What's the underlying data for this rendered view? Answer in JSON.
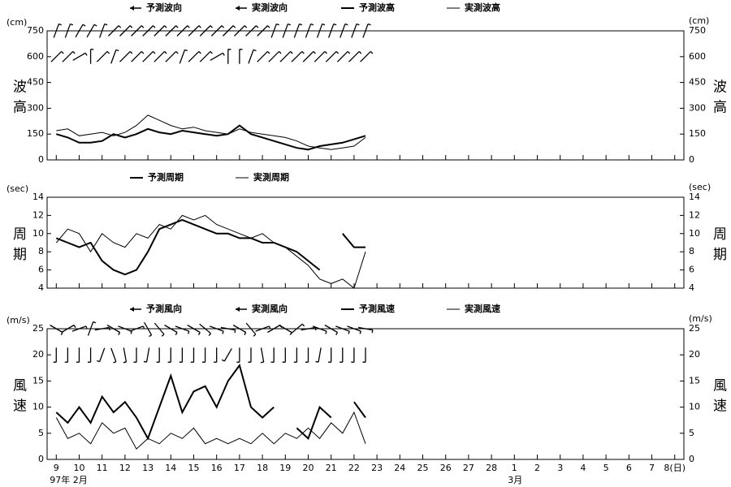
{
  "chart_data": [
    {
      "type": "line",
      "ylabel": "波高",
      "yunit": "(cm)",
      "ylim": [
        0,
        750
      ],
      "yticks": [
        0,
        150,
        300,
        450,
        600,
        750
      ],
      "xlim": [
        -0.4,
        27.4
      ],
      "x": [
        0,
        0.5,
        1,
        1.5,
        2,
        2.5,
        3,
        3.5,
        4,
        4.5,
        5,
        5.5,
        6,
        6.5,
        7,
        7.5,
        8,
        8.5,
        9,
        9.5,
        10,
        10.5,
        11,
        11.5,
        12,
        12.5,
        13,
        13.5
      ],
      "directions": [
        {
          "name": "予測波向",
          "level": 750,
          "values": [
            200,
            200,
            210,
            210,
            200,
            225,
            225,
            225,
            225,
            225,
            225,
            225,
            225,
            225,
            225,
            225,
            225,
            225,
            225,
            200,
            200,
            200,
            200,
            200,
            200,
            200,
            200,
            200
          ]
        },
        {
          "name": "実測波向",
          "level": 600,
          "values": [
            225,
            225,
            240,
            180,
            225,
            200,
            225,
            225,
            225,
            225,
            225,
            200,
            225,
            225,
            240,
            180,
            180,
            200,
            225,
            225,
            225,
            225,
            225,
            225,
            225,
            225,
            225,
            225
          ]
        }
      ],
      "series": [
        {
          "name": "予測波高",
          "color": "#000",
          "width": 2,
          "values": [
            150,
            130,
            100,
            100,
            110,
            150,
            130,
            150,
            180,
            160,
            150,
            170,
            160,
            150,
            140,
            150,
            200,
            150,
            130,
            110,
            90,
            70,
            60,
            80,
            90,
            100,
            120,
            140
          ]
        },
        {
          "name": "実測波高",
          "color": "#000",
          "width": 1,
          "values": [
            170,
            180,
            140,
            150,
            160,
            140,
            160,
            200,
            260,
            230,
            200,
            180,
            190,
            170,
            160,
            150,
            180,
            160,
            150,
            140,
            130,
            110,
            80,
            70,
            60,
            70,
            80,
            130
          ]
        }
      ]
    },
    {
      "type": "line",
      "ylabel": "周期",
      "yunit": "(sec)",
      "ylim": [
        4,
        14
      ],
      "yticks": [
        4,
        6,
        8,
        10,
        12,
        14
      ],
      "xlim": [
        -0.4,
        27.4
      ],
      "x": [
        0,
        0.5,
        1,
        1.5,
        2,
        2.5,
        3,
        3.5,
        4,
        4.5,
        5,
        5.5,
        6,
        6.5,
        7,
        7.5,
        8,
        8.5,
        9,
        9.5,
        10,
        10.5,
        11,
        11.5,
        12,
        12.5,
        13,
        13.5
      ],
      "directions": [],
      "series": [
        {
          "name": "予測周期",
          "color": "#000",
          "width": 2,
          "values": [
            9.5,
            9,
            8.5,
            9,
            7,
            6,
            5.5,
            6,
            8,
            10.5,
            11,
            11.5,
            11,
            10.5,
            10,
            10,
            9.5,
            9.5,
            9,
            9,
            8.5,
            8,
            7,
            6,
            null,
            10,
            8.5,
            8.5
          ]
        },
        {
          "name": "実測周期",
          "color": "#000",
          "width": 1,
          "values": [
            9,
            10.5,
            10,
            8,
            10,
            9,
            8.5,
            10,
            9.5,
            11,
            10.5,
            12,
            11.5,
            12,
            11,
            10.5,
            10,
            9.5,
            10,
            9,
            8.5,
            7.5,
            6.5,
            5,
            4.5,
            5,
            4,
            8
          ]
        }
      ]
    },
    {
      "type": "line",
      "ylabel": "風速",
      "yunit": "(m/s)",
      "ylim": [
        0,
        25
      ],
      "yticks": [
        0,
        5,
        10,
        15,
        20,
        25
      ],
      "xlim": [
        -0.4,
        27.4
      ],
      "x": [
        0,
        0.5,
        1,
        1.5,
        2,
        2.5,
        3,
        3.5,
        4,
        4.5,
        5,
        5.5,
        6,
        6.5,
        7,
        7.5,
        8,
        8.5,
        9,
        9.5,
        10,
        10.5,
        11,
        11.5,
        12,
        12.5,
        13,
        13.5
      ],
      "xticks": [
        {
          "value": 0,
          "label": "9"
        },
        {
          "value": 1,
          "label": "10"
        },
        {
          "value": 2,
          "label": "11"
        },
        {
          "value": 3,
          "label": "12"
        },
        {
          "value": 4,
          "label": "13"
        },
        {
          "value": 5,
          "label": "14"
        },
        {
          "value": 6,
          "label": "15"
        },
        {
          "value": 7,
          "label": "16"
        },
        {
          "value": 8,
          "label": "17"
        },
        {
          "value": 9,
          "label": "18"
        },
        {
          "value": 10,
          "label": "19"
        },
        {
          "value": 11,
          "label": "20"
        },
        {
          "value": 12,
          "label": "21"
        },
        {
          "value": 13,
          "label": "22"
        },
        {
          "value": 14,
          "label": "23"
        },
        {
          "value": 15,
          "label": "24"
        },
        {
          "value": 16,
          "label": "25"
        },
        {
          "value": 17,
          "label": "26"
        },
        {
          "value": 18,
          "label": "27"
        },
        {
          "value": 19,
          "label": "28"
        },
        {
          "value": 20,
          "label": "1"
        },
        {
          "value": 21,
          "label": "2"
        },
        {
          "value": 22,
          "label": "3"
        },
        {
          "value": 23,
          "label": "4"
        },
        {
          "value": 24,
          "label": "5"
        },
        {
          "value": 25,
          "label": "6"
        },
        {
          "value": 26,
          "label": "7"
        },
        {
          "value": 27,
          "label": "8(日)"
        }
      ],
      "month_labels": [
        {
          "value": 0,
          "label": "97年 2月"
        },
        {
          "value": 20,
          "label": "3月"
        }
      ],
      "directions": [
        {
          "name": "予測風向",
          "level": 25,
          "values": [
            300,
            240,
            250,
            200,
            260,
            300,
            290,
            250,
            330,
            320,
            300,
            290,
            300,
            310,
            290,
            280,
            300,
            320,
            250,
            240,
            300,
            230,
            260,
            290,
            300,
            290,
            290,
            280
          ]
        },
        {
          "name": "実測風向",
          "level": 20,
          "values": [
            0,
            0,
            0,
            0,
            20,
            340,
            350,
            0,
            10,
            0,
            0,
            0,
            0,
            0,
            0,
            30,
            0,
            0,
            350,
            0,
            0,
            0,
            0,
            10,
            0,
            0,
            0,
            0
          ]
        }
      ],
      "series": [
        {
          "name": "予測風速",
          "color": "#000",
          "width": 2,
          "values": [
            9,
            7,
            10,
            7,
            12,
            9,
            11,
            8,
            4,
            10,
            16,
            9,
            13,
            14,
            10,
            15,
            18,
            10,
            8,
            10,
            null,
            6,
            4,
            10,
            8,
            null,
            11,
            8
          ]
        },
        {
          "name": "実測風速",
          "color": "#000",
          "width": 1,
          "values": [
            8,
            4,
            5,
            3,
            7,
            5,
            6,
            2,
            4,
            3,
            5,
            4,
            6,
            3,
            4,
            3,
            4,
            3,
            5,
            3,
            5,
            4,
            6,
            4,
            7,
            5,
            9,
            3
          ]
        }
      ]
    }
  ]
}
